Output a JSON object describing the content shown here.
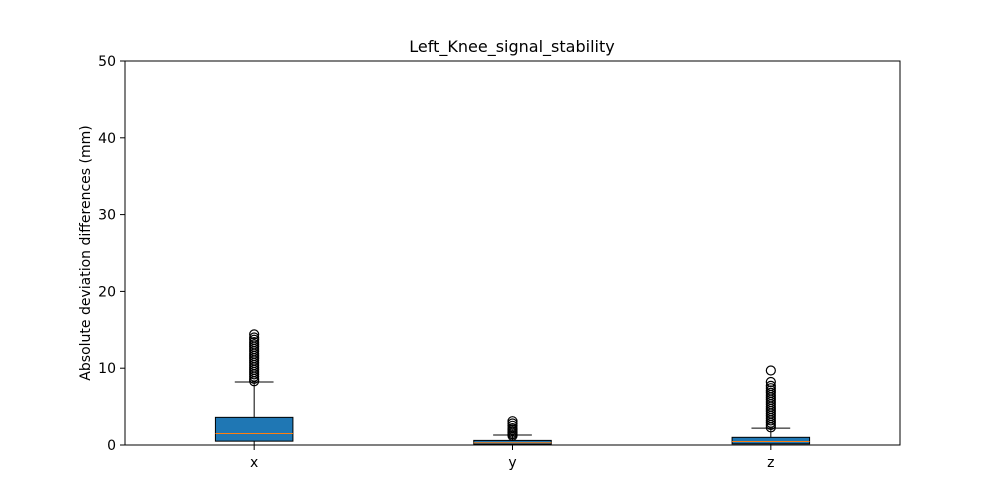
{
  "chart_data": {
    "type": "box",
    "title": "Left_Knee_signal_stability",
    "xlabel": "",
    "ylabel": "Absolute deviation differences (mm)",
    "ylim": [
      0,
      50
    ],
    "yticks": [
      0,
      10,
      20,
      30,
      40,
      50
    ],
    "grid": false,
    "categories": [
      "x",
      "y",
      "z"
    ],
    "box_color": "#1f77b4",
    "median_color": "#ff7f0e",
    "boxes": [
      {
        "name": "x",
        "whisker_low": 0.0,
        "q1": 0.5,
        "median": 1.5,
        "q3": 3.6,
        "whisker_high": 8.2,
        "outliers": [
          8.3,
          8.6,
          8.9,
          9.2,
          9.5,
          9.8,
          10.1,
          10.4,
          10.7,
          11.0,
          11.3,
          11.6,
          11.9,
          12.2,
          12.5,
          12.8,
          13.1,
          13.4,
          13.7,
          14.0,
          14.4
        ]
      },
      {
        "name": "y",
        "whisker_low": 0.0,
        "q1": 0.1,
        "median": 0.3,
        "q3": 0.6,
        "whisker_high": 1.3,
        "outliers": [
          1.2,
          1.4,
          1.6,
          1.8,
          2.0,
          2.2,
          2.5,
          2.8,
          3.1
        ]
      },
      {
        "name": "z",
        "whisker_low": 0.0,
        "q1": 0.15,
        "median": 0.45,
        "q3": 1.0,
        "whisker_high": 2.2,
        "outliers": [
          2.3,
          2.6,
          2.9,
          3.2,
          3.5,
          3.8,
          4.1,
          4.4,
          4.7,
          5.0,
          5.3,
          5.6,
          5.9,
          6.2,
          6.5,
          6.8,
          7.1,
          7.4,
          7.7,
          8.2,
          9.7
        ]
      }
    ]
  }
}
